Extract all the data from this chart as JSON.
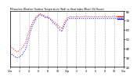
{
  "title": "Milwaukee Weather Outdoor Temperature (Red) vs Heat Index (Blue) (24 Hours)",
  "background_color": "#ffffff",
  "plot_bg_color": "#ffffff",
  "red_color": "#ff0000",
  "blue_color": "#0000ff",
  "tick_color": "#000000",
  "title_color": "#000000",
  "grid_color": "#aaaaaa",
  "ylim": [
    20,
    80
  ],
  "yticks": [
    20,
    30,
    40,
    50,
    60,
    70,
    80
  ],
  "xlim": [
    0,
    96
  ],
  "vlines": [
    0,
    8,
    16,
    24,
    32,
    40,
    48,
    56,
    64,
    72,
    80,
    88,
    96
  ],
  "temp_red": [
    42,
    41,
    40,
    39,
    38,
    37,
    36,
    37,
    38,
    39,
    40,
    42,
    44,
    46,
    50,
    55,
    58,
    62,
    65,
    68,
    70,
    72,
    74,
    75,
    76,
    77,
    77,
    76,
    76,
    75,
    74,
    74,
    74,
    73,
    72,
    71,
    70,
    69,
    68,
    67,
    65,
    64,
    63,
    62,
    61,
    65,
    68,
    70,
    72,
    73,
    74,
    74,
    74,
    74,
    74,
    74,
    74,
    74,
    74,
    74,
    74,
    74,
    74,
    74,
    74,
    74,
    74,
    74,
    74,
    74,
    74,
    74,
    74,
    74,
    74,
    74,
    74,
    74,
    74,
    74,
    74,
    74,
    74,
    74,
    74,
    74,
    74,
    74,
    74,
    74,
    74,
    74,
    74,
    74,
    74,
    74,
    74
  ],
  "heat_blue": [
    35,
    34,
    33,
    32,
    31,
    30,
    30,
    30,
    31,
    32,
    33,
    35,
    37,
    39,
    43,
    48,
    52,
    57,
    61,
    65,
    67,
    70,
    72,
    74,
    75,
    76,
    76,
    75,
    75,
    74,
    73,
    73,
    73,
    72,
    71,
    70,
    68,
    67,
    66,
    65,
    63,
    62,
    60,
    59,
    58,
    62,
    65,
    68,
    70,
    71,
    72,
    72,
    72,
    72,
    72,
    72,
    72,
    72,
    72,
    72,
    72,
    72,
    72,
    72,
    72,
    72,
    72,
    72,
    72,
    72,
    72,
    72,
    72,
    72,
    72,
    72,
    72,
    72,
    72,
    72,
    72,
    72,
    72,
    72,
    72,
    72,
    72,
    72,
    72,
    72,
    72,
    72,
    72,
    72,
    72,
    72,
    72
  ],
  "xtick_positions": [
    0,
    8,
    16,
    24,
    32,
    40,
    48,
    56,
    64,
    72,
    80,
    88,
    96
  ],
  "xtick_labels": [
    "12a",
    "2",
    "4",
    "6",
    "8",
    "10",
    "12p",
    "2",
    "4",
    "6",
    "8",
    "10",
    "12a"
  ]
}
